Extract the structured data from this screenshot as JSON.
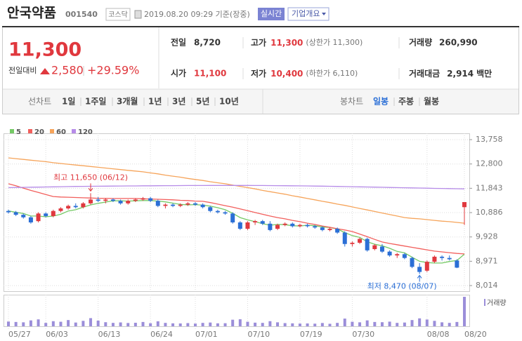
{
  "header": {
    "name": "안국약품",
    "code": "001540",
    "market": "코스닥",
    "time": "2019.08.20 09:29 기준(장중)",
    "realtime": "실시간",
    "overview": "기업개요"
  },
  "summary": {
    "price": "11,300",
    "change_label": "전일대비",
    "change": "2,580",
    "rate": "+29.59%",
    "prev": {
      "label": "전일",
      "value": "8,720"
    },
    "high": {
      "label": "고가",
      "value": "11,300",
      "note": "(상한가 11,300)"
    },
    "volume": {
      "label": "거래량",
      "value": "260,990"
    },
    "open": {
      "label": "시가",
      "value": "11,100"
    },
    "low": {
      "label": "저가",
      "value": "10,400",
      "note": "(하한가 6,110)"
    },
    "amount": {
      "label": "거래대금",
      "value": "2,914",
      "unit": "백만"
    }
  },
  "tabs": {
    "line_label": "선차트",
    "line_items": [
      "1일",
      "1주일",
      "3개월",
      "1년",
      "3년",
      "5년",
      "10년"
    ],
    "candle_label": "봉차트",
    "candle_items": [
      "일봉",
      "주봉",
      "월봉"
    ]
  },
  "chart_data": {
    "type": "candlestick",
    "categories": [
      "05/27",
      null,
      null,
      null,
      null,
      "06/03",
      null,
      null,
      null,
      null,
      null,
      null,
      "06/13",
      null,
      null,
      null,
      null,
      null,
      null,
      "06/24",
      null,
      null,
      null,
      null,
      null,
      "07/01",
      null,
      null,
      null,
      null,
      null,
      null,
      "07/10",
      null,
      null,
      null,
      null,
      null,
      null,
      "07/19",
      null,
      null,
      null,
      null,
      null,
      null,
      "07/30",
      null,
      null,
      null,
      null,
      null,
      null,
      null,
      null,
      null,
      "08/08",
      null,
      null,
      null,
      null,
      "08/20"
    ],
    "open": [
      10950,
      10900,
      10800,
      10700,
      10550,
      10850,
      10750,
      10950,
      11050,
      11150,
      11100,
      11250,
      11400,
      11350,
      11400,
      11350,
      11250,
      11350,
      11400,
      11450,
      11350,
      11150,
      11200,
      11150,
      11200,
      11250,
      11200,
      11100,
      10950,
      10900,
      10850,
      10500,
      10250,
      10500,
      10550,
      10450,
      10250,
      10400,
      10450,
      10350,
      10400,
      10350,
      10300,
      10200,
      10250,
      10100,
      9650,
      9700,
      9850,
      9450,
      9550,
      9350,
      9200,
      9250,
      9100,
      8750,
      8600,
      8950,
      9150,
      9100,
      9000,
      11100
    ],
    "high": [
      11000,
      10950,
      10850,
      10750,
      10900,
      10900,
      11000,
      11100,
      11200,
      11250,
      11300,
      11650,
      11500,
      11450,
      11450,
      11400,
      11400,
      11450,
      11500,
      11500,
      11400,
      11250,
      11250,
      11250,
      11300,
      11300,
      11250,
      11150,
      11000,
      10950,
      10900,
      10550,
      10550,
      10600,
      10600,
      10550,
      10450,
      10500,
      10500,
      10450,
      10450,
      10400,
      10350,
      10300,
      10300,
      10150,
      9750,
      9900,
      9900,
      9650,
      9650,
      9400,
      9300,
      9300,
      9150,
      8900,
      9000,
      9200,
      9200,
      9200,
      9050,
      11300
    ],
    "low": [
      10850,
      10750,
      10650,
      10450,
      10500,
      10700,
      10700,
      10900,
      11000,
      11050,
      11050,
      11200,
      11300,
      11250,
      11300,
      11200,
      11200,
      11300,
      11350,
      11300,
      11100,
      11050,
      11100,
      11100,
      11150,
      11150,
      11050,
      10900,
      10850,
      10800,
      10450,
      10200,
      10200,
      10400,
      10400,
      10150,
      10200,
      10350,
      10300,
      10300,
      10300,
      10250,
      10150,
      10150,
      10050,
      9550,
      9550,
      9650,
      9350,
      9400,
      9300,
      9150,
      9100,
      9050,
      8700,
      8470,
      8550,
      8900,
      9000,
      9000,
      8700,
      10400
    ],
    "close": [
      10900,
      10800,
      10700,
      10500,
      10850,
      10750,
      10950,
      11050,
      11150,
      11100,
      11250,
      11400,
      11350,
      11400,
      11350,
      11250,
      11350,
      11400,
      11450,
      11350,
      11150,
      11200,
      11150,
      11200,
      11250,
      11200,
      11100,
      10950,
      10900,
      10850,
      10500,
      10250,
      10500,
      10550,
      10450,
      10200,
      10400,
      10450,
      10350,
      10400,
      10350,
      10300,
      10200,
      10250,
      10100,
      9650,
      9700,
      9850,
      9400,
      9600,
      9350,
      9200,
      9250,
      9100,
      8750,
      8550,
      8950,
      9150,
      9100,
      9050,
      8720,
      11300
    ],
    "up_color": "#e0383e",
    "down_color": "#2b6fd6",
    "series": [
      {
        "name": "5",
        "color": "#74c965",
        "values": [
          10950,
          10900,
          10850,
          10750,
          10750,
          10720,
          10750,
          10820,
          10950,
          11000,
          11100,
          11190,
          11250,
          11300,
          11350,
          11350,
          11340,
          11350,
          11360,
          11360,
          11340,
          11310,
          11260,
          11210,
          11190,
          11200,
          11180,
          11140,
          11080,
          11000,
          10860,
          10690,
          10600,
          10530,
          10450,
          10390,
          10420,
          10410,
          10370,
          10360,
          10390,
          10370,
          10320,
          10300,
          10240,
          10100,
          9980,
          9910,
          9740,
          9640,
          9580,
          9480,
          9360,
          9300,
          9130,
          8970,
          8920,
          8900,
          8900,
          8960,
          9000,
          9250
        ]
      },
      {
        "name": "20",
        "color": "#f25f5c",
        "values": [
          12020,
          11940,
          11850,
          11760,
          11680,
          11600,
          11520,
          11500,
          11490,
          11480,
          11470,
          11460,
          11450,
          11450,
          11440,
          11440,
          11440,
          11440,
          11430,
          11420,
          11410,
          11400,
          11390,
          11370,
          11360,
          11340,
          11330,
          11280,
          11220,
          11160,
          11100,
          11030,
          10960,
          10890,
          10820,
          10750,
          10690,
          10640,
          10580,
          10530,
          10470,
          10420,
          10360,
          10310,
          10250,
          10200,
          10140,
          10040,
          9940,
          9830,
          9730,
          9670,
          9620,
          9570,
          9520,
          9470,
          9420,
          9370,
          9340,
          9310,
          9280,
          9260
        ]
      },
      {
        "name": "60",
        "color": "#f6a45a",
        "values": [
          13040,
          13010,
          12980,
          12950,
          12920,
          12890,
          12850,
          12820,
          12790,
          12760,
          12730,
          12700,
          12670,
          12640,
          12610,
          12580,
          12550,
          12520,
          12490,
          12450,
          12410,
          12360,
          12320,
          12280,
          12230,
          12190,
          12150,
          12100,
          12060,
          12020,
          11970,
          11920,
          11870,
          11820,
          11760,
          11710,
          11660,
          11610,
          11550,
          11500,
          11440,
          11390,
          11330,
          11280,
          11220,
          11170,
          11110,
          11050,
          10990,
          10930,
          10870,
          10810,
          10750,
          10690,
          10660,
          10640,
          10610,
          10580,
          10550,
          10530,
          10500,
          10470
        ]
      },
      {
        "name": "120",
        "color": "#b68be8",
        "values": [
          11870,
          11875,
          11880,
          11885,
          11890,
          11895,
          11900,
          11905,
          11910,
          11915,
          11920,
          11922,
          11925,
          11928,
          11930,
          11932,
          11935,
          11937,
          11940,
          11942,
          11944,
          11946,
          11948,
          11950,
          11951,
          11952,
          11953,
          11954,
          11955,
          11955,
          11955,
          11955,
          11954,
          11953,
          11952,
          11950,
          11948,
          11945,
          11942,
          11939,
          11935,
          11931,
          11927,
          11922,
          11917,
          11912,
          11906,
          11900,
          11894,
          11888,
          11882,
          11876,
          11870,
          11864,
          11858,
          11852,
          11846,
          11840,
          11835,
          11830,
          11825,
          11820
        ]
      }
    ],
    "volume": {
      "name": "거래량",
      "color": "#9b8ed9",
      "values": [
        42000,
        38000,
        35000,
        52000,
        61000,
        30000,
        45000,
        40000,
        55000,
        33000,
        48000,
        72000,
        50000,
        36000,
        30000,
        34000,
        29000,
        31000,
        38000,
        27000,
        44000,
        30000,
        26000,
        25000,
        28000,
        24000,
        30000,
        33000,
        26000,
        27000,
        58000,
        62000,
        40000,
        32000,
        30000,
        45000,
        35000,
        28000,
        26000,
        24000,
        25000,
        23000,
        29000,
        22000,
        30000,
        68000,
        40000,
        35000,
        52000,
        38000,
        36000,
        41000,
        30000,
        33000,
        55000,
        70000,
        60000,
        48000,
        35000,
        30000,
        38000,
        260990
      ]
    },
    "ylim": [
      7793,
      14007
    ],
    "yticks": [
      {
        "value": 13758,
        "label": "13,758"
      },
      {
        "value": 12800,
        "label": "12,800"
      },
      {
        "value": 11843,
        "label": "11,843"
      },
      {
        "value": 10886,
        "label": "10,886"
      },
      {
        "value": 9928,
        "label": "9,928"
      },
      {
        "value": 8971,
        "label": "8,971"
      },
      {
        "value": 8014,
        "label": "8,014"
      }
    ],
    "annotations": [
      "최고 11,650 (06/12)",
      "최저 8,470 (08/07)"
    ],
    "grid": true
  }
}
